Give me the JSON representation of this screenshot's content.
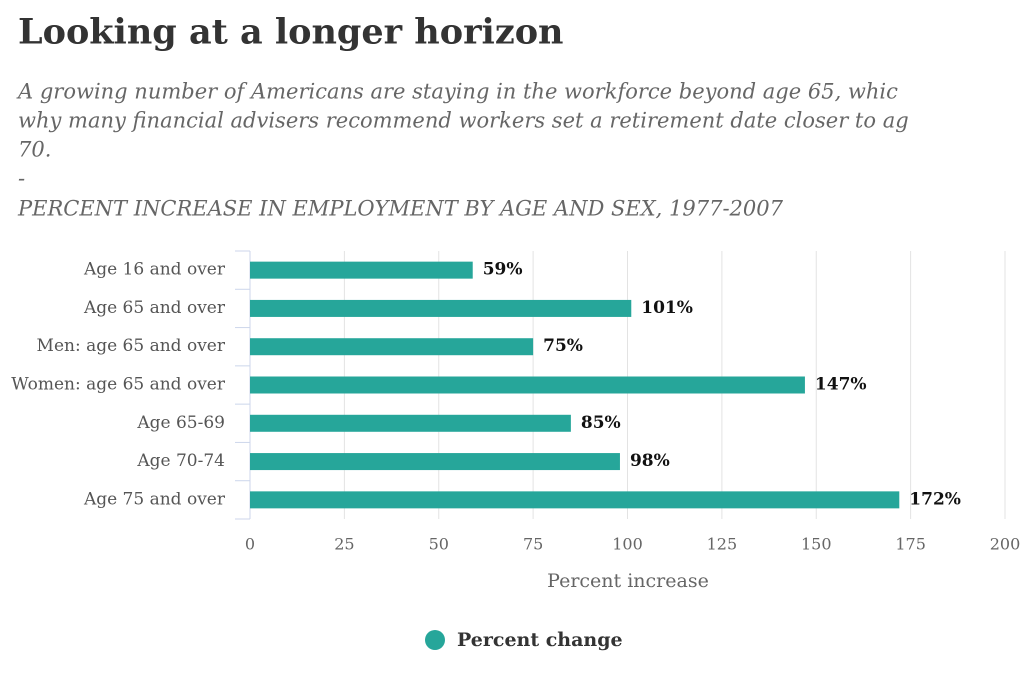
{
  "chart_data": {
    "type": "bar",
    "orientation": "horizontal",
    "title": "Looking at a longer horizon",
    "subtitle_lines": [
      "A growing number of Americans are staying in the workforce beyond age 65, whic",
      "why many financial advisers recommend workers set a retirement date closer to ag",
      "70.",
      "-"
    ],
    "chart_subtitle": "PERCENT INCREASE IN EMPLOYMENT BY AGE AND SEX, 1977-2007",
    "categories": [
      "Age 16 and over",
      "Age 65 and over",
      "Men: age 65 and over",
      "Women: age 65 and over",
      "Age 65-69",
      "Age 70-74",
      "Age 75 and over"
    ],
    "series": [
      {
        "name": "Percent change",
        "color": "#26a69a",
        "values": [
          59,
          101,
          75,
          147,
          85,
          98,
          172
        ],
        "value_labels": [
          "59%",
          "101%",
          "75%",
          "147%",
          "85%",
          "98%",
          "172%"
        ]
      }
    ],
    "xlabel": "Percent increase",
    "xlim": [
      0,
      200
    ],
    "xticks": [
      0,
      25,
      50,
      75,
      100,
      125,
      150,
      175,
      200
    ],
    "grid": true,
    "legend": "bottom"
  }
}
